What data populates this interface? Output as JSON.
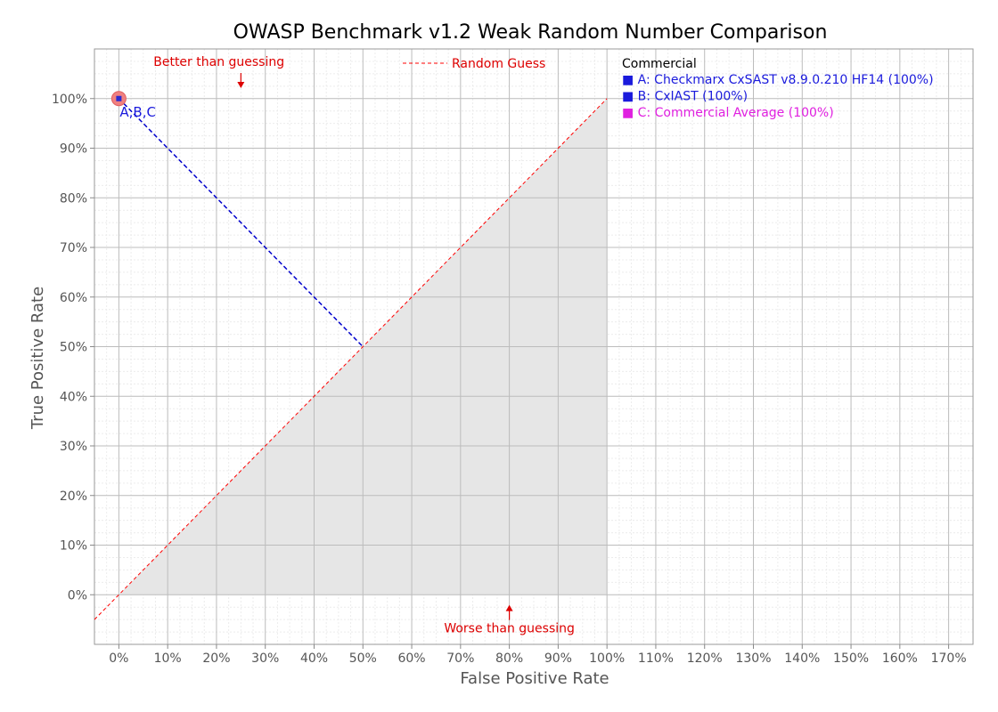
{
  "chart_data": {
    "type": "scatter",
    "title": "OWASP Benchmark v1.2 Weak Random Number Comparison",
    "xlabel": "False Positive Rate",
    "ylabel": "True Positive Rate",
    "xlim": [
      -5,
      175
    ],
    "ylim": [
      -10,
      110
    ],
    "x_ticks": [
      "0%",
      "10%",
      "20%",
      "30%",
      "40%",
      "50%",
      "60%",
      "70%",
      "80%",
      "90%",
      "100%",
      "110%",
      "120%",
      "130%",
      "140%",
      "150%",
      "160%",
      "170%"
    ],
    "y_ticks": [
      "0%",
      "10%",
      "20%",
      "30%",
      "40%",
      "50%",
      "60%",
      "70%",
      "80%",
      "90%",
      "100%"
    ],
    "grid": true,
    "points": [
      {
        "label": "A,B,C",
        "x": 0,
        "y": 100
      }
    ],
    "projection_line": {
      "from": [
        0,
        100
      ],
      "to": [
        50,
        50
      ]
    },
    "random_guess_line": {
      "from": [
        -5,
        -5
      ],
      "to": [
        100,
        100
      ]
    },
    "annotations": {
      "better": "Better than guessing",
      "worse": "Worse than guessing",
      "random_guess": "Random Guess"
    },
    "legend": {
      "placement": "right",
      "heading": "Commercial",
      "entries": [
        {
          "marker": "■",
          "text": "A: Checkmarx CxSAST v8.9.0.210 HF14 (100%)",
          "color": "#1a1adc"
        },
        {
          "marker": "■",
          "text": "B: CxIAST (100%)",
          "color": "#1a1adc"
        },
        {
          "marker": "■",
          "text": "C: Commercial Average (100%)",
          "color": "#e020e0"
        }
      ]
    },
    "colors": {
      "random_line": "#ff0000",
      "projection": "#0000cc",
      "shade": "#e6e6e6",
      "point_fill": "#f08080",
      "point_label": "#1a1adc"
    }
  }
}
